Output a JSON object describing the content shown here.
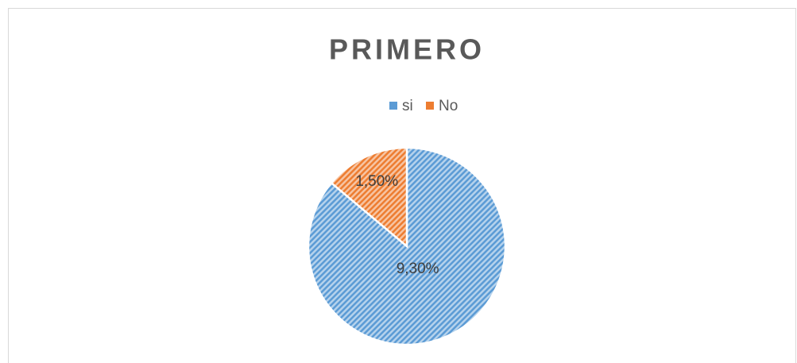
{
  "chart_data": {
    "type": "pie",
    "title": "PRIMERO",
    "categories": [
      "si",
      "No"
    ],
    "values": [
      9.3,
      1.5
    ],
    "value_labels": [
      "9,30%",
      "1,50%"
    ],
    "colors": [
      "#5b9bd5",
      "#ed7d31"
    ],
    "legend": "top"
  }
}
